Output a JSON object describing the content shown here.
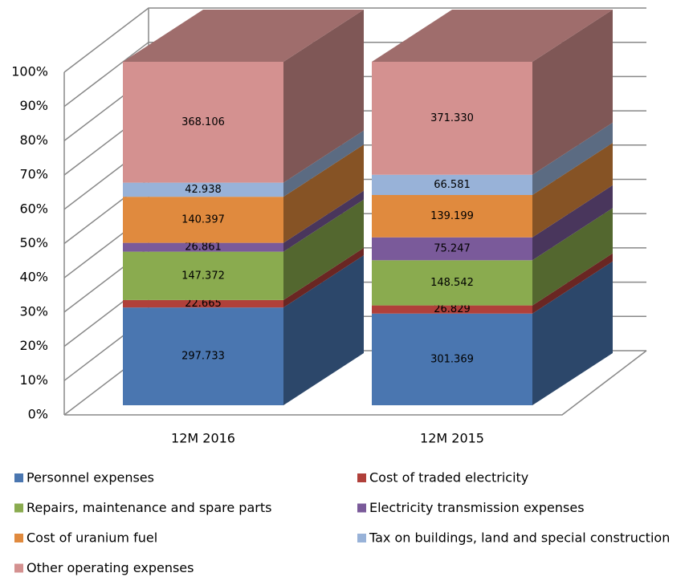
{
  "chart_data": {
    "type": "bar",
    "stacking": "percent",
    "categories": [
      "12M 2016",
      "12M 2015"
    ],
    "series": [
      {
        "name": "Personnel expenses",
        "color": "#4a76b0",
        "values": [
          297.733,
          301.369
        ]
      },
      {
        "name": "Cost of traded electricity",
        "color": "#b0403a",
        "values": [
          22.665,
          26.829
        ]
      },
      {
        "name": "Repairs, maintenance and spare parts",
        "color": "#8aab4f",
        "values": [
          147.372,
          148.542
        ]
      },
      {
        "name": "Electricity transmission expenses",
        "color": "#7a5a9a",
        "values": [
          26.861,
          75.247
        ]
      },
      {
        "name": "Cost of uranium fuel",
        "color": "#e08a3e",
        "values": [
          140.397,
          139.199
        ]
      },
      {
        "name": "Tax on buildings, land and special construction",
        "color": "#98b2d8",
        "values": [
          42.938,
          66.581
        ]
      },
      {
        "name": "Other operating expenses",
        "color": "#d49190",
        "values": [
          368.106,
          371.33
        ]
      }
    ],
    "value_labels": [
      [
        "297.733",
        "301.369"
      ],
      [
        "22.665",
        "26.829"
      ],
      [
        "147.372",
        "148.542"
      ],
      [
        "26.861",
        "75.247"
      ],
      [
        "140.397",
        "139.199"
      ],
      [
        "42.938",
        "66.581"
      ],
      [
        "368.106",
        "371.330"
      ]
    ],
    "ylim": [
      0,
      100
    ],
    "yticks": [
      {
        "value": 0,
        "label": "0%"
      },
      {
        "value": 10,
        "label": "10%"
      },
      {
        "value": 20,
        "label": "20%"
      },
      {
        "value": 30,
        "label": "30%"
      },
      {
        "value": 40,
        "label": "40%"
      },
      {
        "value": 50,
        "label": "50%"
      },
      {
        "value": 60,
        "label": "60%"
      },
      {
        "value": 70,
        "label": "70%"
      },
      {
        "value": 80,
        "label": "80%"
      },
      {
        "value": 90,
        "label": "90%"
      },
      {
        "value": 100,
        "label": "100%"
      }
    ],
    "grid": true,
    "legend": "bottom"
  }
}
